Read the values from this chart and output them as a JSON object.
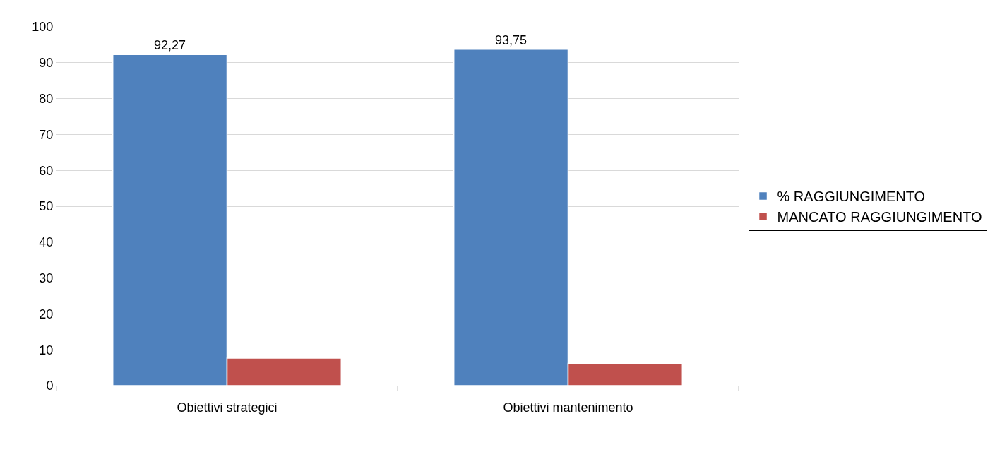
{
  "chart_data": {
    "type": "bar",
    "categories": [
      "Obiettivi strategici",
      "Obiettivi mantenimento"
    ],
    "series": [
      {
        "name": "% RAGGIUNGIMENTO",
        "color": "#4f81bd",
        "values": [
          92.27,
          93.75
        ],
        "value_labels": [
          "92,27",
          "93,75"
        ]
      },
      {
        "name": "MANCATO RAGGIUNGIMENTO",
        "color": "#c0504d",
        "values": [
          7.7,
          6.2
        ]
      }
    ],
    "ylim": [
      0,
      100
    ],
    "yticks": [
      0,
      10,
      20,
      30,
      40,
      50,
      60,
      70,
      80,
      90,
      100
    ],
    "grid": "y",
    "legend": "right"
  }
}
